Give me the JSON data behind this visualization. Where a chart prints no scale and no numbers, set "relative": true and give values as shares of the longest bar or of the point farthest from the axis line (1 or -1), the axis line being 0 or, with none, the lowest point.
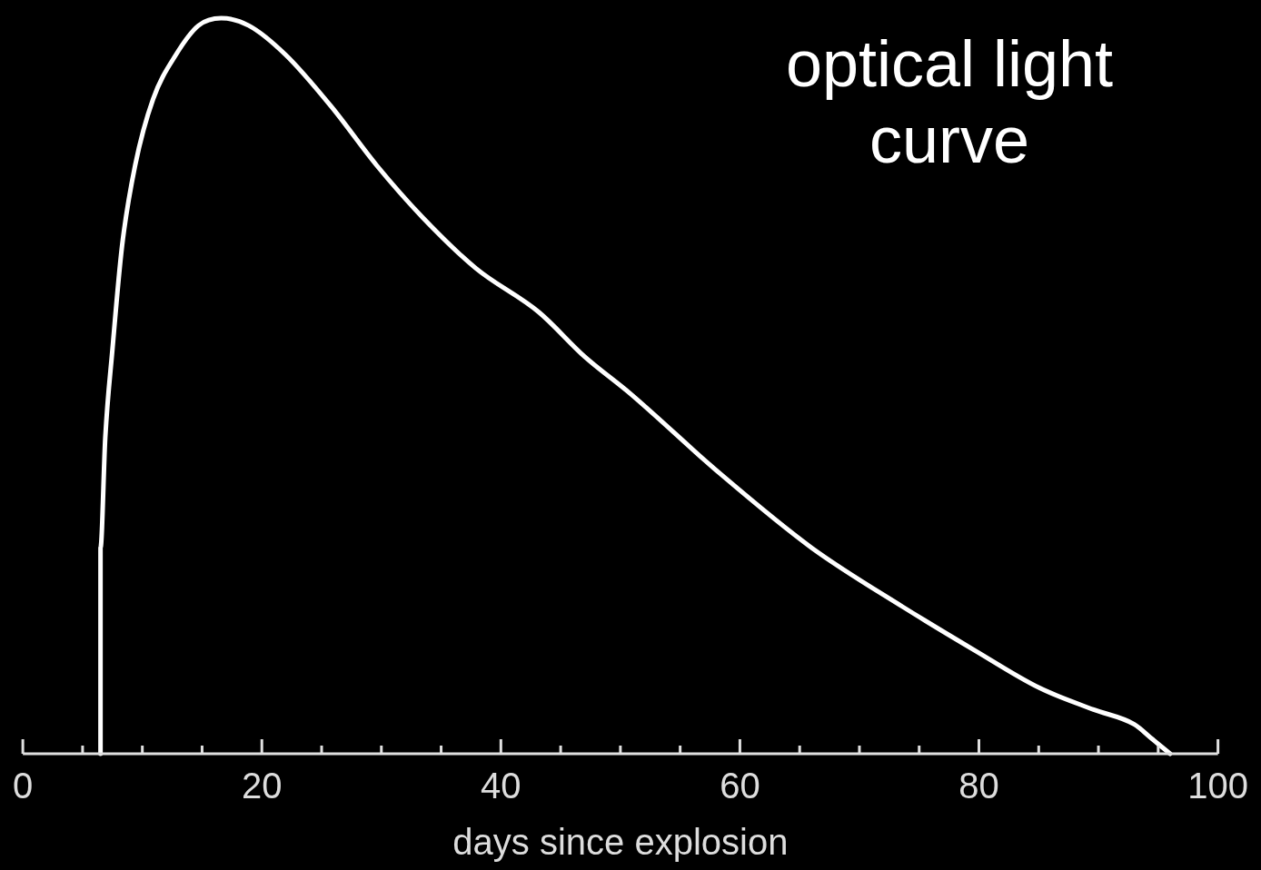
{
  "chart_data": {
    "type": "line",
    "relative": true,
    "xlabel": "days since explosion",
    "annotations": [
      "optical light curve"
    ],
    "xlim": [
      0,
      100
    ],
    "xticks": [
      0,
      {
        "value": 5,
        "label": null
      },
      {
        "value": 10,
        "label": null
      },
      {
        "value": 15,
        "label": null
      },
      20,
      {
        "value": 25,
        "label": null
      },
      {
        "value": 30,
        "label": null
      },
      {
        "value": 35,
        "label": null
      },
      40,
      {
        "value": 45,
        "label": null
      },
      {
        "value": 50,
        "label": null
      },
      {
        "value": 55,
        "label": null
      },
      60,
      {
        "value": 65,
        "label": null
      },
      {
        "value": 70,
        "label": null
      },
      {
        "value": 75,
        "label": null
      },
      80,
      {
        "value": 85,
        "label": null
      },
      {
        "value": 90,
        "label": null
      },
      {
        "value": 95,
        "label": null
      },
      100
    ],
    "grid": false,
    "legend": false,
    "marker": "none",
    "line_style": "solid",
    "series": [
      {
        "color": "#ffffff",
        "x": [
          6.5,
          6.5,
          6.9,
          7.5,
          8.3,
          9.4,
          10.9,
          12.8,
          14.7,
          16.6,
          18.9,
          22.0,
          25.8,
          29.6,
          33.4,
          37.9,
          43.2,
          47.0,
          50.8,
          58.4,
          66.0,
          73.6,
          79.7,
          85.0,
          89.6,
          93.0,
          94.5,
          96.0
        ],
        "values": [
          0,
          0.28,
          0.43,
          0.55,
          0.69,
          0.8,
          0.89,
          0.95,
          0.99,
          1,
          0.99,
          0.95,
          0.88,
          0.8,
          0.73,
          0.66,
          0.6,
          0.54,
          0.49,
          0.38,
          0.28,
          0.2,
          0.14,
          0.09,
          0.06,
          0.04,
          0.02,
          0
        ]
      }
    ]
  }
}
